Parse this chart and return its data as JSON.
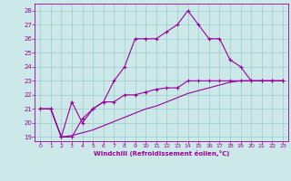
{
  "xlabel": "Windchill (Refroidissement éolien,°C)",
  "bg_color": "#cce8e8",
  "grid_color": "#99cccc",
  "line_color": "#990099",
  "x_ticks": [
    0,
    1,
    2,
    3,
    4,
    5,
    6,
    7,
    8,
    9,
    10,
    11,
    12,
    13,
    14,
    15,
    16,
    17,
    18,
    19,
    20,
    21,
    22,
    23
  ],
  "yticks": [
    19,
    20,
    21,
    22,
    23,
    24,
    25,
    26,
    27,
    28
  ],
  "ylim": [
    18.7,
    28.5
  ],
  "xlim": [
    -0.5,
    23.5
  ],
  "series1_x": [
    0,
    1,
    2,
    3,
    4,
    5,
    6,
    7,
    8,
    9,
    10,
    11,
    12,
    13,
    14,
    15,
    16,
    17,
    18,
    19,
    20,
    21,
    22,
    23
  ],
  "series1_y": [
    21.0,
    21.0,
    19.0,
    21.5,
    20.0,
    21.0,
    21.5,
    23.0,
    24.0,
    26.0,
    26.0,
    26.0,
    26.5,
    27.0,
    28.0,
    27.0,
    26.0,
    26.0,
    24.5,
    24.0,
    23.0,
    23.0,
    23.0,
    23.0
  ],
  "series2_x": [
    0,
    1,
    2,
    3,
    4,
    5,
    6,
    7,
    8,
    9,
    10,
    11,
    12,
    13,
    14,
    15,
    16,
    17,
    18,
    19,
    20,
    21,
    22,
    23
  ],
  "series2_y": [
    21.0,
    21.0,
    19.0,
    19.0,
    20.3,
    21.0,
    21.5,
    21.5,
    22.0,
    22.0,
    22.2,
    22.4,
    22.5,
    22.5,
    23.0,
    23.0,
    23.0,
    23.0,
    23.0,
    23.0,
    23.0,
    23.0,
    23.0,
    23.0
  ],
  "series3_x": [
    0,
    1,
    2,
    3,
    4,
    5,
    6,
    7,
    8,
    9,
    10,
    11,
    12,
    13,
    14,
    15,
    16,
    17,
    18,
    19,
    20,
    21,
    22,
    23
  ],
  "series3_y": [
    21.0,
    21.0,
    19.0,
    19.1,
    19.3,
    19.5,
    19.8,
    20.1,
    20.4,
    20.7,
    21.0,
    21.2,
    21.5,
    21.8,
    22.1,
    22.3,
    22.5,
    22.7,
    22.9,
    23.0,
    23.0,
    23.0,
    23.0,
    23.0
  ]
}
